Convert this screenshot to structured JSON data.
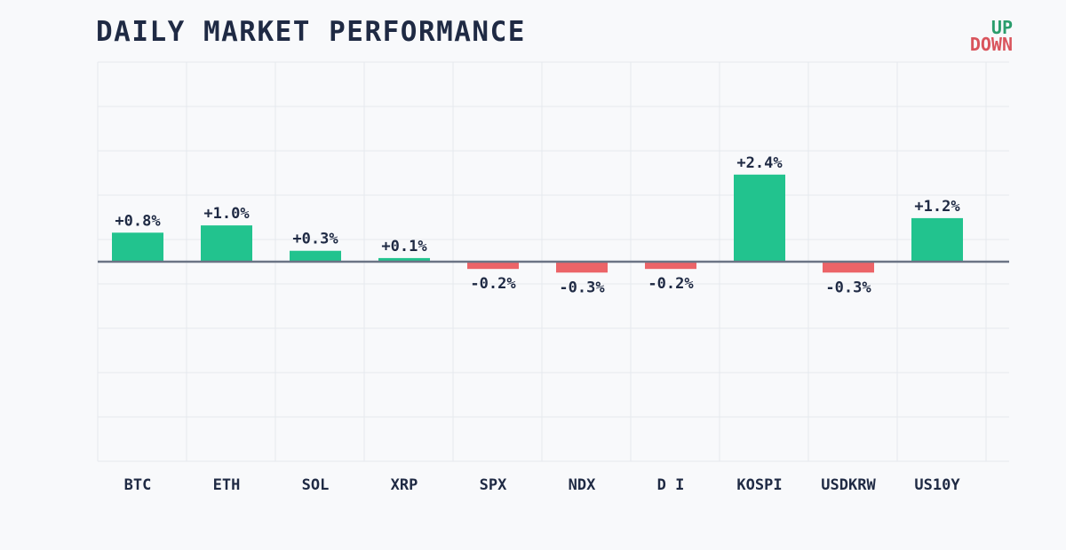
{
  "chart_data": {
    "type": "bar",
    "title": "DAILY MARKET PERFORMANCE",
    "categories": [
      "BTC",
      "ETH",
      "SOL",
      "XRP",
      "SPX",
      "NDX",
      "D I",
      "KOSPI",
      "USDKRW",
      "US10Y"
    ],
    "values": [
      0.8,
      1.0,
      0.3,
      0.1,
      -0.2,
      -0.3,
      -0.2,
      2.4,
      -0.3,
      1.2
    ],
    "value_labels": [
      "+0.8%",
      "+1.0%",
      "+0.3%",
      "+0.1%",
      "-0.2%",
      "-0.3%",
      "-0.2%",
      "+2.4%",
      "-0.3%",
      "+1.2%"
    ],
    "ylim": [
      -5.5,
      5.5
    ],
    "grid": true,
    "legend": {
      "position": "top-right",
      "up_label": "UP",
      "down_label": "DOWN"
    },
    "colors": {
      "up": "#22c38e",
      "down": "#ec6468",
      "zero_line": "#6b7485",
      "grid": "#e6e9ee",
      "text": "#1f2a44"
    }
  }
}
